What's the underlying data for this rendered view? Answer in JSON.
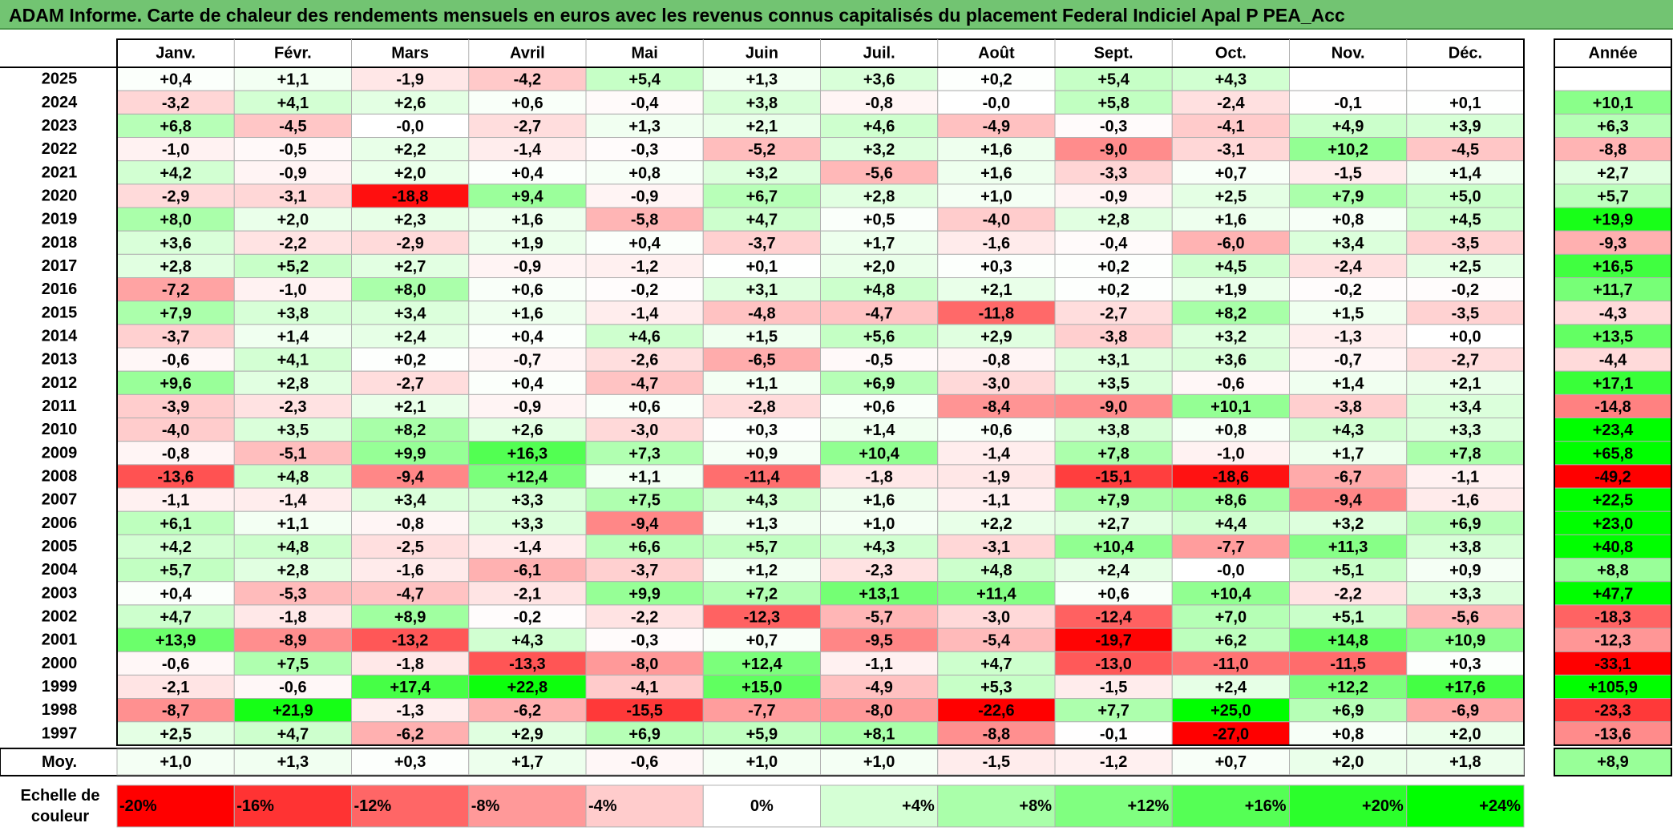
{
  "title": "ADAM Informe. Carte de chaleur des rendements mensuels en euros avec les revenus connus capitalisés du placement Federal Indiciel Apal P PEA_Acc",
  "chart_data": {
    "type": "heatmap",
    "months": [
      "Janv.",
      "Févr.",
      "Mars",
      "Avril",
      "Mai",
      "Juin",
      "Juil.",
      "Août",
      "Sept.",
      "Oct.",
      "Nov.",
      "Déc."
    ],
    "year_header": "Année",
    "rows": [
      {
        "year": "2025",
        "values": [
          "+0,4",
          "+1,1",
          "-1,9",
          "-4,2",
          "+5,4",
          "+1,3",
          "+3,6",
          "+0,2",
          "+5,4",
          "+4,3",
          "",
          ""
        ],
        "annual": ""
      },
      {
        "year": "2024",
        "values": [
          "-3,2",
          "+4,1",
          "+2,6",
          "+0,6",
          "-0,4",
          "+3,8",
          "-0,8",
          "-0,0",
          "+5,8",
          "-2,4",
          "-0,1",
          "+0,1"
        ],
        "annual": "+10,1"
      },
      {
        "year": "2023",
        "values": [
          "+6,8",
          "-4,5",
          "-0,0",
          "-2,7",
          "+1,3",
          "+2,1",
          "+4,6",
          "-4,9",
          "-0,3",
          "-4,1",
          "+4,9",
          "+3,9"
        ],
        "annual": "+6,3"
      },
      {
        "year": "2022",
        "values": [
          "-1,0",
          "-0,5",
          "+2,2",
          "-1,4",
          "-0,3",
          "-5,2",
          "+3,2",
          "+1,6",
          "-9,0",
          "-3,1",
          "+10,2",
          "-4,5"
        ],
        "annual": "-8,8"
      },
      {
        "year": "2021",
        "values": [
          "+4,2",
          "-0,9",
          "+2,0",
          "+0,4",
          "+0,8",
          "+3,2",
          "-5,6",
          "+1,6",
          "-3,3",
          "+0,7",
          "-1,5",
          "+1,4"
        ],
        "annual": "+2,7"
      },
      {
        "year": "2020",
        "values": [
          "-2,9",
          "-3,1",
          "-18,8",
          "+9,4",
          "-0,9",
          "+6,7",
          "+2,8",
          "+1,0",
          "-0,9",
          "+2,5",
          "+7,9",
          "+5,0"
        ],
        "annual": "+5,7"
      },
      {
        "year": "2019",
        "values": [
          "+8,0",
          "+2,0",
          "+2,3",
          "+1,6",
          "-5,8",
          "+4,7",
          "+0,5",
          "-4,0",
          "+2,8",
          "+1,6",
          "+0,8",
          "+4,5"
        ],
        "annual": "+19,9"
      },
      {
        "year": "2018",
        "values": [
          "+3,6",
          "-2,2",
          "-2,9",
          "+1,9",
          "+0,4",
          "-3,7",
          "+1,7",
          "-1,6",
          "-0,4",
          "-6,0",
          "+3,4",
          "-3,5"
        ],
        "annual": "-9,3"
      },
      {
        "year": "2017",
        "values": [
          "+2,8",
          "+5,2",
          "+2,7",
          "-0,9",
          "-1,2",
          "+0,1",
          "+2,0",
          "+0,3",
          "+0,2",
          "+4,5",
          "-2,4",
          "+2,5"
        ],
        "annual": "+16,5"
      },
      {
        "year": "2016",
        "values": [
          "-7,2",
          "-1,0",
          "+8,0",
          "+0,6",
          "-0,2",
          "+3,1",
          "+4,8",
          "+2,1",
          "+0,2",
          "+1,9",
          "-0,2",
          "-0,2"
        ],
        "annual": "+11,7"
      },
      {
        "year": "2015",
        "values": [
          "+7,9",
          "+3,8",
          "+3,4",
          "+1,6",
          "-1,4",
          "-4,8",
          "-4,7",
          "-11,8",
          "-2,7",
          "+8,2",
          "+1,5",
          "-3,5"
        ],
        "annual": "-4,3"
      },
      {
        "year": "2014",
        "values": [
          "-3,7",
          "+1,4",
          "+2,4",
          "+0,4",
          "+4,6",
          "+1,5",
          "+5,6",
          "+2,9",
          "-3,8",
          "+3,2",
          "-1,3",
          "+0,0"
        ],
        "annual": "+13,5"
      },
      {
        "year": "2013",
        "values": [
          "-0,6",
          "+4,1",
          "+0,2",
          "-0,7",
          "-2,6",
          "-6,5",
          "-0,5",
          "-0,8",
          "+3,1",
          "+3,6",
          "-0,7",
          "-2,7"
        ],
        "annual": "-4,4"
      },
      {
        "year": "2012",
        "values": [
          "+9,6",
          "+2,8",
          "-2,7",
          "+0,4",
          "-4,7",
          "+1,1",
          "+6,9",
          "-3,0",
          "+3,5",
          "-0,6",
          "+1,4",
          "+2,1"
        ],
        "annual": "+17,1"
      },
      {
        "year": "2011",
        "values": [
          "-3,9",
          "-2,3",
          "+2,1",
          "-0,9",
          "+0,6",
          "-2,8",
          "+0,6",
          "-8,4",
          "-9,0",
          "+10,1",
          "-3,8",
          "+3,4"
        ],
        "annual": "-14,8"
      },
      {
        "year": "2010",
        "values": [
          "-4,0",
          "+3,5",
          "+8,2",
          "+2,6",
          "-3,0",
          "+0,3",
          "+1,4",
          "+0,6",
          "+3,8",
          "+0,8",
          "+4,3",
          "+3,3"
        ],
        "annual": "+23,4"
      },
      {
        "year": "2009",
        "values": [
          "-0,8",
          "-5,1",
          "+9,9",
          "+16,3",
          "+7,3",
          "+0,9",
          "+10,4",
          "-1,4",
          "+7,8",
          "-1,0",
          "+1,7",
          "+7,8"
        ],
        "annual": "+65,8"
      },
      {
        "year": "2008",
        "values": [
          "-13,6",
          "+4,8",
          "-9,4",
          "+12,4",
          "+1,1",
          "-11,4",
          "-1,8",
          "-1,9",
          "-15,1",
          "-18,6",
          "-6,7",
          "-1,1"
        ],
        "annual": "-49,2"
      },
      {
        "year": "2007",
        "values": [
          "-1,1",
          "-1,4",
          "+3,4",
          "+3,3",
          "+7,5",
          "+4,3",
          "+1,6",
          "-1,1",
          "+7,9",
          "+8,6",
          "-9,4",
          "-1,6"
        ],
        "annual": "+22,5"
      },
      {
        "year": "2006",
        "values": [
          "+6,1",
          "+1,1",
          "-0,8",
          "+3,3",
          "-9,4",
          "+1,3",
          "+1,0",
          "+2,2",
          "+2,7",
          "+4,4",
          "+3,2",
          "+6,9"
        ],
        "annual": "+23,0"
      },
      {
        "year": "2005",
        "values": [
          "+4,2",
          "+4,8",
          "-2,5",
          "-1,4",
          "+6,6",
          "+5,7",
          "+4,3",
          "-3,1",
          "+10,4",
          "-7,7",
          "+11,3",
          "+3,8"
        ],
        "annual": "+40,8"
      },
      {
        "year": "2004",
        "values": [
          "+5,7",
          "+2,8",
          "-1,6",
          "-6,1",
          "-3,7",
          "+1,2",
          "-2,3",
          "+4,8",
          "+2,4",
          "-0,0",
          "+5,1",
          "+0,9"
        ],
        "annual": "+8,8"
      },
      {
        "year": "2003",
        "values": [
          "+0,4",
          "-5,3",
          "-4,7",
          "-2,1",
          "+9,9",
          "+7,2",
          "+13,1",
          "+11,4",
          "+0,6",
          "+10,4",
          "-2,2",
          "+3,3"
        ],
        "annual": "+47,7"
      },
      {
        "year": "2002",
        "values": [
          "+4,7",
          "-1,8",
          "+8,9",
          "-0,2",
          "-2,2",
          "-12,3",
          "-5,7",
          "-3,0",
          "-12,4",
          "+7,0",
          "+5,1",
          "-5,6"
        ],
        "annual": "-18,3"
      },
      {
        "year": "2001",
        "values": [
          "+13,9",
          "-8,9",
          "-13,2",
          "+4,3",
          "-0,3",
          "+0,7",
          "-9,5",
          "-5,4",
          "-19,7",
          "+6,2",
          "+14,8",
          "+10,9"
        ],
        "annual": "-12,3"
      },
      {
        "year": "2000",
        "values": [
          "-0,6",
          "+7,5",
          "-1,8",
          "-13,3",
          "-8,0",
          "+12,4",
          "-1,1",
          "+4,7",
          "-13,0",
          "-11,0",
          "-11,5",
          "+0,3"
        ],
        "annual": "-33,1"
      },
      {
        "year": "1999",
        "values": [
          "-2,1",
          "-0,6",
          "+17,4",
          "+22,8",
          "-4,1",
          "+15,0",
          "-4,9",
          "+5,3",
          "-1,5",
          "+2,4",
          "+12,2",
          "+17,6"
        ],
        "annual": "+105,9"
      },
      {
        "year": "1998",
        "values": [
          "-8,7",
          "+21,9",
          "-1,3",
          "-6,2",
          "-15,5",
          "-7,7",
          "-8,0",
          "-22,6",
          "+7,7",
          "+25,0",
          "+6,9",
          "-6,9"
        ],
        "annual": "-23,3"
      },
      {
        "year": "1997",
        "values": [
          "+2,5",
          "+4,7",
          "-6,2",
          "+2,9",
          "+6,9",
          "+5,9",
          "+8,1",
          "-8,8",
          "-0,1",
          "-27,0",
          "+0,8",
          "+2,0"
        ],
        "annual": "-13,6"
      }
    ],
    "average": {
      "label": "Moy.",
      "values": [
        "+1,0",
        "+1,3",
        "+0,3",
        "+1,7",
        "-0,6",
        "+1,0",
        "+1,0",
        "-1,5",
        "-1,2",
        "+0,7",
        "+2,0",
        "+1,8"
      ],
      "annual": "+8,9"
    },
    "scale": {
      "label_line1": "Echelle de",
      "label_line2": "couleur",
      "items": [
        {
          "label": "-20%",
          "value": -20
        },
        {
          "label": "-16%",
          "value": -16
        },
        {
          "label": "-12%",
          "value": -12
        },
        {
          "label": "-8%",
          "value": -8
        },
        {
          "label": "-4%",
          "value": -4
        },
        {
          "label": "0%",
          "value": 0
        },
        {
          "label": "+4%",
          "value": 4
        },
        {
          "label": "+8%",
          "value": 8
        },
        {
          "label": "+12%",
          "value": 12
        },
        {
          "label": "+16%",
          "value": 16
        },
        {
          "label": "+20%",
          "value": 20
        },
        {
          "label": "+24%",
          "value": 24
        }
      ]
    },
    "colors": {
      "negative_max": "#ff0000",
      "zero": "#ffffff",
      "positive_max": "#00ff00",
      "title_background": "#72c472",
      "grid": "#b0b0b0",
      "border": "#000000"
    }
  }
}
